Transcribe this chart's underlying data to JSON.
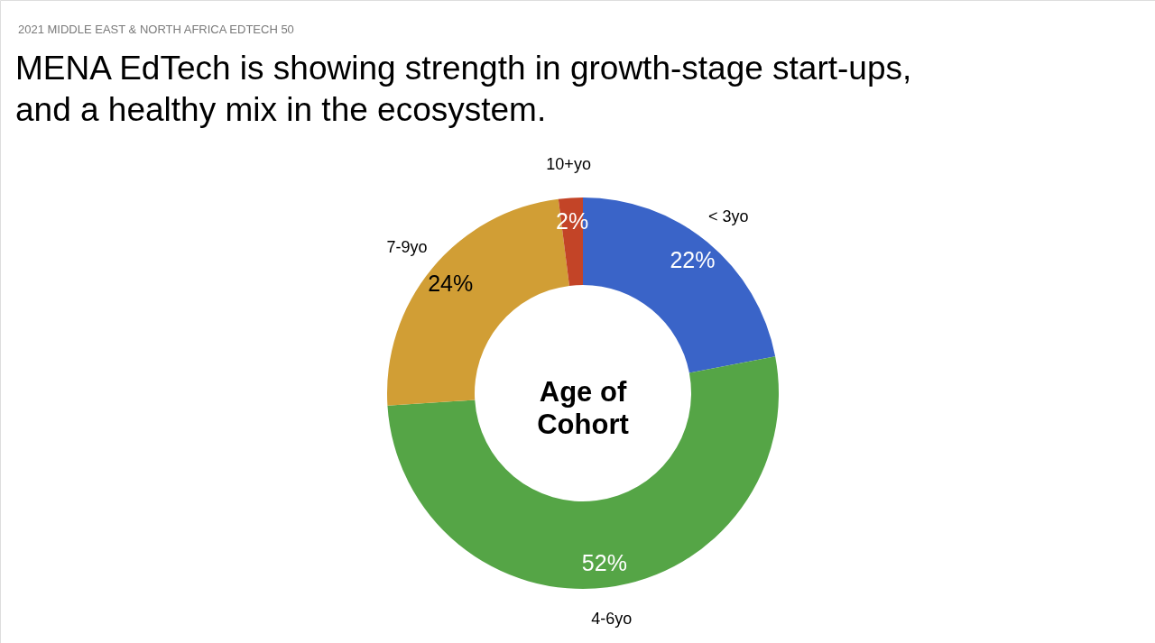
{
  "chart_data": {
    "type": "donut",
    "title": "MENA EdTech is showing strength in growth-stage start-ups, and a healthy mix in the ecosystem.",
    "annotations": [
      "2021 MIDDLE EAST & NORTH AFRICA EDTECH 50",
      "Age of Cohort"
    ],
    "categories": [
      "< 3yo",
      "4-6yo",
      "7-9yo",
      "10+yo"
    ],
    "values": [
      22,
      52,
      24,
      2
    ],
    "colors": [
      "#3a64c8",
      "#55a546",
      "#d19e35",
      "#c34427"
    ],
    "value_labels": [
      "22%",
      "52%",
      "24%",
      "2%"
    ]
  }
}
